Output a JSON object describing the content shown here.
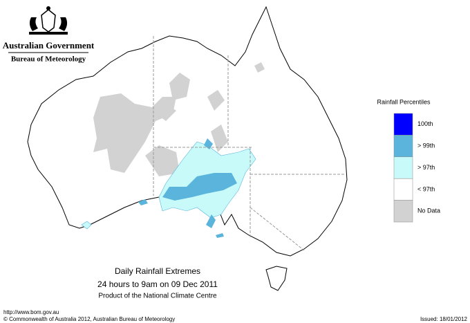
{
  "header": {
    "government": "Australian Government",
    "agency": "Bureau of Meteorology"
  },
  "legend": {
    "title": "Rainfall Percentiles",
    "items": [
      {
        "label": "100th",
        "color": "#0000ff"
      },
      {
        "label": "> 99th",
        "color": "#5ab4dc"
      },
      {
        "label": "> 97th",
        "color": "#c8fafa"
      },
      {
        "label": "< 97th",
        "color": "#ffffff"
      },
      {
        "label": "No Data",
        "color": "#d2d2d2"
      }
    ]
  },
  "caption": {
    "title": "Daily Rainfall Extremes",
    "subtitle": "24 hours to 9am on 09 Dec 2011",
    "credit": "Product of the National Climate Centre"
  },
  "footer": {
    "url": "http://www.bom.gov.au",
    "copyright": "© Commonwealth of Australia 2012, Australian Bureau of Meteorology",
    "issued": "Issued: 18/01/2012"
  }
}
